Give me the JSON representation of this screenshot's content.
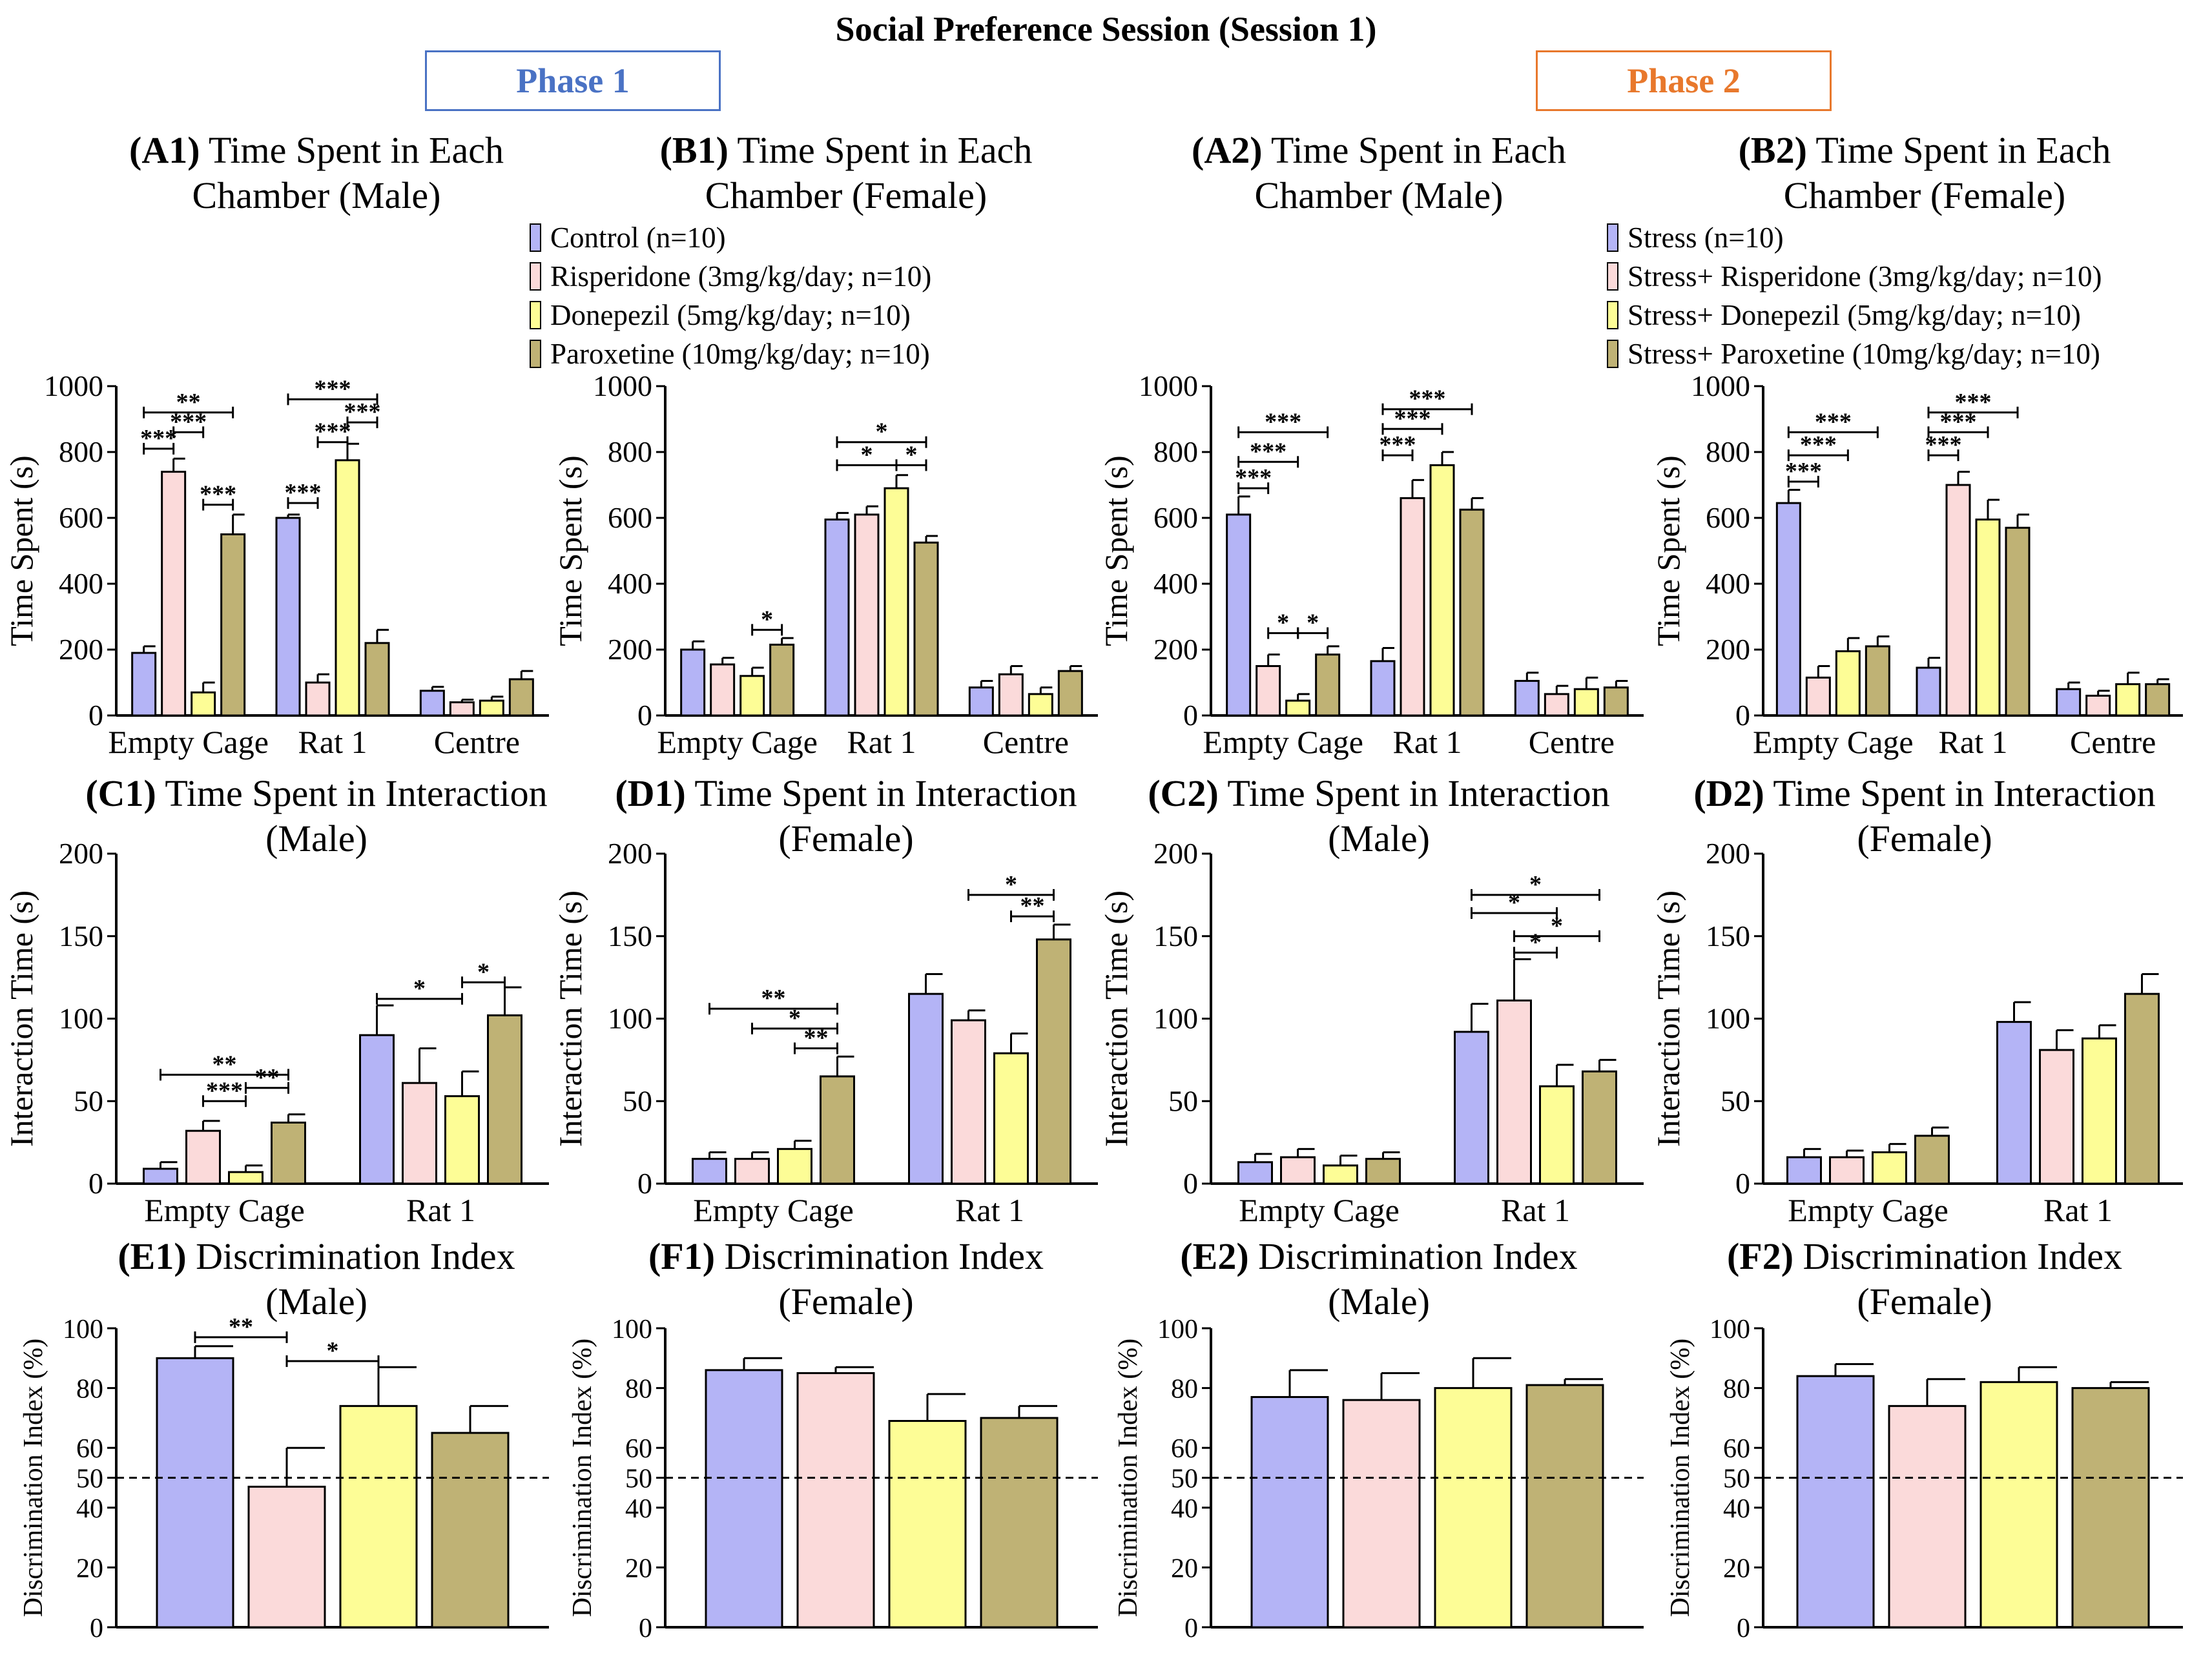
{
  "title": "Social Preference Session (Session 1)",
  "phases": [
    {
      "label": "Phase 1",
      "color": "#4a72c4"
    },
    {
      "label": "Phase 2",
      "color": "#e8782c"
    }
  ],
  "group_colors": [
    "#b4b4f6",
    "#fbdada",
    "#fdfd96",
    "#bfb275"
  ],
  "legends": [
    [
      "Control (n=10)",
      "Risperidone (3mg/kg/day; n=10)",
      "Donepezil (5mg/kg/day; n=10)",
      "Paroxetine (10mg/kg/day; n=10)"
    ],
    [
      "Stress (n=10)",
      "Stress+ Risperidone (3mg/kg/day; n=10)",
      "Stress+ Donepezil (5mg/kg/day; n=10)",
      "Stress+ Paroxetine (10mg/kg/day; n=10)"
    ]
  ],
  "chart_data": [
    {
      "id": "A1",
      "type": "bar",
      "panel_label": "(A1)",
      "title": [
        "Time Spent in Each",
        "Chamber (Male)"
      ],
      "ylabel": "Time Spent (s)",
      "ylim": [
        0,
        1000
      ],
      "yticks": [
        0,
        200,
        400,
        600,
        800,
        1000
      ],
      "categories": [
        "Empty Cage",
        "Rat 1",
        "Centre"
      ],
      "values": [
        [
          190,
          740,
          70,
          550
        ],
        [
          600,
          100,
          775,
          220
        ],
        [
          75,
          40,
          45,
          110
        ]
      ],
      "errors": [
        [
          20,
          40,
          30,
          60
        ],
        [
          10,
          25,
          50,
          40
        ],
        [
          12,
          8,
          12,
          25
        ]
      ],
      "sig": [
        {
          "g": 0,
          "from": 0,
          "to": 1,
          "y": 810,
          "label": "***"
        },
        {
          "g": 0,
          "from": 1,
          "to": 2,
          "y": 860,
          "label": "***"
        },
        {
          "g": 0,
          "from": 0,
          "to": 3,
          "y": 920,
          "label": "**"
        },
        {
          "g": 0,
          "from": 2,
          "to": 3,
          "y": 640,
          "label": "***"
        },
        {
          "g": 1,
          "from": 0,
          "to": 1,
          "y": 645,
          "label": "***"
        },
        {
          "g": 1,
          "from": 1,
          "to": 2,
          "y": 830,
          "label": "***"
        },
        {
          "g": 1,
          "from": 2,
          "to": 3,
          "y": 890,
          "label": "***"
        },
        {
          "g": 1,
          "from": 0,
          "to": 3,
          "y": 960,
          "label": "***"
        }
      ]
    },
    {
      "id": "B1",
      "type": "bar",
      "panel_label": "(B1)",
      "title": [
        "Time Spent in Each",
        "Chamber (Female)"
      ],
      "ylabel": "Time Spent (s)",
      "ylim": [
        0,
        1000
      ],
      "yticks": [
        0,
        200,
        400,
        600,
        800,
        1000
      ],
      "categories": [
        "Empty Cage",
        "Rat 1",
        "Centre"
      ],
      "values": [
        [
          200,
          155,
          120,
          215
        ],
        [
          595,
          610,
          690,
          525
        ],
        [
          85,
          125,
          65,
          135
        ]
      ],
      "errors": [
        [
          25,
          20,
          25,
          20
        ],
        [
          20,
          25,
          40,
          20
        ],
        [
          20,
          25,
          20,
          15
        ]
      ],
      "sig": [
        {
          "g": 0,
          "from": 2,
          "to": 3,
          "y": 260,
          "label": "*"
        },
        {
          "g": 1,
          "from": 0,
          "to": 2,
          "y": 760,
          "label": "*"
        },
        {
          "g": 1,
          "from": 2,
          "to": 3,
          "y": 760,
          "label": "*"
        },
        {
          "g": 1,
          "from": 0,
          "to": 3,
          "y": 830,
          "label": "*"
        }
      ]
    },
    {
      "id": "A2",
      "type": "bar",
      "panel_label": "(A2)",
      "title": [
        "Time Spent in Each",
        "Chamber (Male)"
      ],
      "ylabel": "Time Spent (s)",
      "ylim": [
        0,
        1000
      ],
      "yticks": [
        0,
        200,
        400,
        600,
        800,
        1000
      ],
      "categories": [
        "Empty Cage",
        "Rat 1",
        "Centre"
      ],
      "values": [
        [
          610,
          150,
          45,
          185
        ],
        [
          165,
          660,
          760,
          625
        ],
        [
          105,
          65,
          80,
          85
        ]
      ],
      "errors": [
        [
          55,
          35,
          20,
          25
        ],
        [
          40,
          55,
          40,
          35
        ],
        [
          25,
          25,
          35,
          20
        ]
      ],
      "sig": [
        {
          "g": 0,
          "from": 0,
          "to": 1,
          "y": 690,
          "label": "***"
        },
        {
          "g": 0,
          "from": 0,
          "to": 2,
          "y": 770,
          "label": "***"
        },
        {
          "g": 0,
          "from": 0,
          "to": 3,
          "y": 860,
          "label": "***"
        },
        {
          "g": 0,
          "from": 1,
          "to": 2,
          "y": 250,
          "label": "*"
        },
        {
          "g": 0,
          "from": 2,
          "to": 3,
          "y": 250,
          "label": "*"
        },
        {
          "g": 1,
          "from": 0,
          "to": 1,
          "y": 790,
          "label": "***"
        },
        {
          "g": 1,
          "from": 0,
          "to": 2,
          "y": 870,
          "label": "***"
        },
        {
          "g": 1,
          "from": 0,
          "to": 3,
          "y": 930,
          "label": "***"
        }
      ]
    },
    {
      "id": "B2",
      "type": "bar",
      "panel_label": "(B2)",
      "title": [
        "Time Spent in Each",
        "Chamber (Female)"
      ],
      "ylabel": "Time Spent (s)",
      "ylim": [
        0,
        1000
      ],
      "yticks": [
        0,
        200,
        400,
        600,
        800,
        1000
      ],
      "categories": [
        "Empty Cage",
        "Rat 1",
        "Centre"
      ],
      "values": [
        [
          645,
          115,
          195,
          210
        ],
        [
          145,
          700,
          595,
          570
        ],
        [
          80,
          60,
          95,
          95
        ]
      ],
      "errors": [
        [
          40,
          35,
          40,
          30
        ],
        [
          30,
          40,
          60,
          40
        ],
        [
          20,
          15,
          35,
          15
        ]
      ],
      "sig": [
        {
          "g": 0,
          "from": 0,
          "to": 1,
          "y": 710,
          "label": "***"
        },
        {
          "g": 0,
          "from": 0,
          "to": 2,
          "y": 790,
          "label": "***"
        },
        {
          "g": 0,
          "from": 0,
          "to": 3,
          "y": 860,
          "label": "***"
        },
        {
          "g": 1,
          "from": 0,
          "to": 1,
          "y": 790,
          "label": "***"
        },
        {
          "g": 1,
          "from": 0,
          "to": 2,
          "y": 860,
          "label": "***"
        },
        {
          "g": 1,
          "from": 0,
          "to": 3,
          "y": 920,
          "label": "***"
        }
      ]
    },
    {
      "id": "C1",
      "type": "bar",
      "panel_label": "(C1)",
      "title": [
        "Time Spent in Interaction",
        "(Male)"
      ],
      "ylabel": "Interaction Time (s)",
      "ylim": [
        0,
        200
      ],
      "yticks": [
        0,
        50,
        100,
        150,
        200
      ],
      "categories": [
        "Empty Cage",
        "Rat 1"
      ],
      "values": [
        [
          9,
          32,
          7,
          37
        ],
        [
          90,
          61,
          53,
          102
        ]
      ],
      "errors": [
        [
          4,
          6,
          4,
          5
        ],
        [
          18,
          21,
          15,
          17
        ]
      ],
      "sig": [
        {
          "g": 0,
          "from": 1,
          "to": 2,
          "y": 50,
          "label": "***"
        },
        {
          "g": 0,
          "from": 2,
          "to": 3,
          "y": 58,
          "label": "**"
        },
        {
          "g": 0,
          "from": 0,
          "to": 3,
          "y": 66,
          "label": "**"
        },
        {
          "g": 1,
          "from": 0,
          "to": 2,
          "y": 112,
          "label": "*"
        },
        {
          "g": 1,
          "from": 2,
          "to": 3,
          "y": 122,
          "label": "*"
        }
      ]
    },
    {
      "id": "D1",
      "type": "bar",
      "panel_label": "(D1)",
      "title": [
        "Time Spent in Interaction",
        "(Female)"
      ],
      "ylabel": "Interaction Time (s)",
      "ylim": [
        0,
        200
      ],
      "yticks": [
        0,
        50,
        100,
        150,
        200
      ],
      "categories": [
        "Empty Cage",
        "Rat 1"
      ],
      "values": [
        [
          15,
          15,
          21,
          65
        ],
        [
          115,
          99,
          79,
          148
        ]
      ],
      "errors": [
        [
          4,
          4,
          5,
          12
        ],
        [
          12,
          6,
          12,
          9
        ]
      ],
      "sig": [
        {
          "g": 0,
          "from": 2,
          "to": 3,
          "y": 82,
          "label": "**"
        },
        {
          "g": 0,
          "from": 1,
          "to": 3,
          "y": 94,
          "label": "*"
        },
        {
          "g": 0,
          "from": 0,
          "to": 3,
          "y": 106,
          "label": "**"
        },
        {
          "g": 1,
          "from": 2,
          "to": 3,
          "y": 162,
          "label": "**"
        },
        {
          "g": 1,
          "from": 1,
          "to": 3,
          "y": 175,
          "label": "*"
        }
      ]
    },
    {
      "id": "C2",
      "type": "bar",
      "panel_label": "(C2)",
      "title": [
        "Time Spent in Interaction",
        "(Male)"
      ],
      "ylabel": "Interaction Time (s)",
      "ylim": [
        0,
        200
      ],
      "yticks": [
        0,
        50,
        100,
        150,
        200
      ],
      "categories": [
        "Empty Cage",
        "Rat 1"
      ],
      "values": [
        [
          13,
          16,
          11,
          15
        ],
        [
          92,
          111,
          59,
          68
        ]
      ],
      "errors": [
        [
          5,
          5,
          6,
          4
        ],
        [
          17,
          25,
          13,
          7
        ]
      ],
      "sig": [
        {
          "g": 1,
          "from": 1,
          "to": 2,
          "y": 140,
          "label": "*"
        },
        {
          "g": 1,
          "from": 1,
          "to": 3,
          "y": 150,
          "label": "*"
        },
        {
          "g": 1,
          "from": 0,
          "to": 2,
          "y": 164,
          "label": "*"
        },
        {
          "g": 1,
          "from": 0,
          "to": 3,
          "y": 175,
          "label": "*"
        }
      ]
    },
    {
      "id": "D2",
      "type": "bar",
      "panel_label": "(D2)",
      "title": [
        "Time Spent in Interaction",
        "(Female)"
      ],
      "ylabel": "Interaction Time (s)",
      "ylim": [
        0,
        200
      ],
      "yticks": [
        0,
        50,
        100,
        150,
        200
      ],
      "categories": [
        "Empty Cage",
        "Rat 1"
      ],
      "values": [
        [
          16,
          16,
          19,
          29
        ],
        [
          98,
          81,
          88,
          115
        ]
      ],
      "errors": [
        [
          5,
          4,
          5,
          5
        ],
        [
          12,
          12,
          8,
          12
        ]
      ],
      "sig": []
    },
    {
      "id": "E1",
      "type": "bar",
      "panel_label": "(E1)",
      "title": [
        "Discrimination Index",
        "(Male)"
      ],
      "ylabel": "Discrimination Index (%)",
      "ylim": [
        0,
        100
      ],
      "yticks": [
        0,
        20,
        40,
        50,
        60,
        80,
        100
      ],
      "refline": 50,
      "categories": [
        ""
      ],
      "values": [
        [
          90,
          47,
          74,
          65
        ]
      ],
      "errors": [
        [
          4,
          13,
          13,
          9
        ]
      ],
      "sig": [
        {
          "g": 0,
          "from": 0,
          "to": 1,
          "y": 97,
          "label": "**"
        },
        {
          "g": 0,
          "from": 1,
          "to": 2,
          "y": 89,
          "label": "*"
        }
      ]
    },
    {
      "id": "F1",
      "type": "bar",
      "panel_label": "(F1)",
      "title": [
        "Discrimination Index",
        "(Female)"
      ],
      "ylabel": "Discrimination Index (%)",
      "ylim": [
        0,
        100
      ],
      "yticks": [
        0,
        20,
        40,
        50,
        60,
        80,
        100
      ],
      "refline": 50,
      "categories": [
        ""
      ],
      "values": [
        [
          86,
          85,
          69,
          70
        ]
      ],
      "errors": [
        [
          4,
          2,
          9,
          4
        ]
      ],
      "sig": []
    },
    {
      "id": "E2",
      "type": "bar",
      "panel_label": "(E2)",
      "title": [
        "Discrimination Index",
        "(Male)"
      ],
      "ylabel": "Discrimination Index (%)",
      "ylim": [
        0,
        100
      ],
      "yticks": [
        0,
        20,
        40,
        50,
        60,
        80,
        100
      ],
      "refline": 50,
      "categories": [
        ""
      ],
      "values": [
        [
          77,
          76,
          80,
          81
        ]
      ],
      "errors": [
        [
          9,
          9,
          10,
          2
        ]
      ],
      "sig": []
    },
    {
      "id": "F2",
      "type": "bar",
      "panel_label": "(F2)",
      "title": [
        "Discrimination Index",
        "(Female)"
      ],
      "ylabel": "Discrimination Index (%)",
      "ylim": [
        0,
        100
      ],
      "yticks": [
        0,
        20,
        40,
        50,
        60,
        80,
        100
      ],
      "refline": 50,
      "categories": [
        ""
      ],
      "values": [
        [
          84,
          74,
          82,
          80
        ]
      ],
      "errors": [
        [
          4,
          9,
          5,
          2
        ]
      ],
      "sig": []
    }
  ]
}
